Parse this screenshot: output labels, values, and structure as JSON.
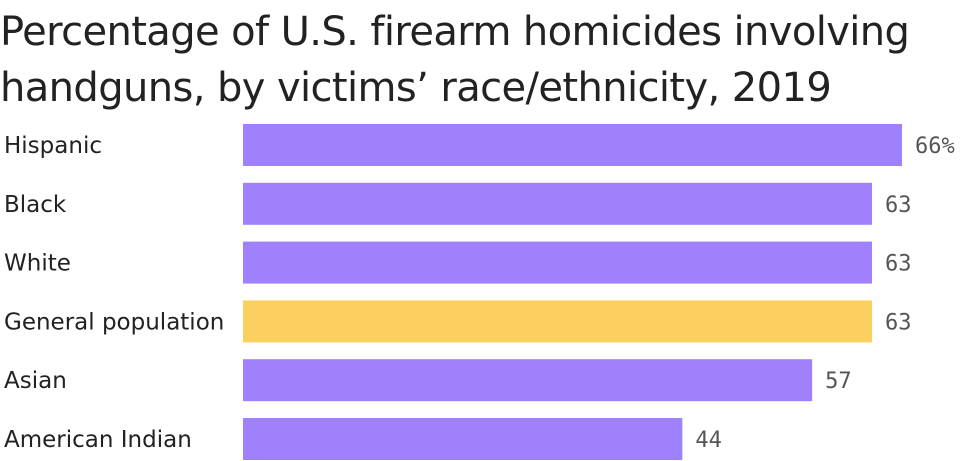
{
  "chart_data": {
    "type": "bar",
    "orientation": "horizontal",
    "title": "Percentage of U.S. firearm homicides involving handguns, by victims’ race/ethnicity, 2019",
    "categories": [
      "Hispanic",
      "Black",
      "White",
      "General population",
      "Asian",
      "American Indian"
    ],
    "values": [
      66,
      63,
      63,
      63,
      57,
      44
    ],
    "value_labels": [
      "66%",
      "63",
      "63",
      "63",
      "57",
      "44"
    ],
    "highlight_category": "General population",
    "colors": {
      "bar": "#A081FD",
      "highlight": "#FCD060"
    },
    "xlim": [
      0,
      66
    ],
    "grid": false,
    "legend": "none"
  }
}
